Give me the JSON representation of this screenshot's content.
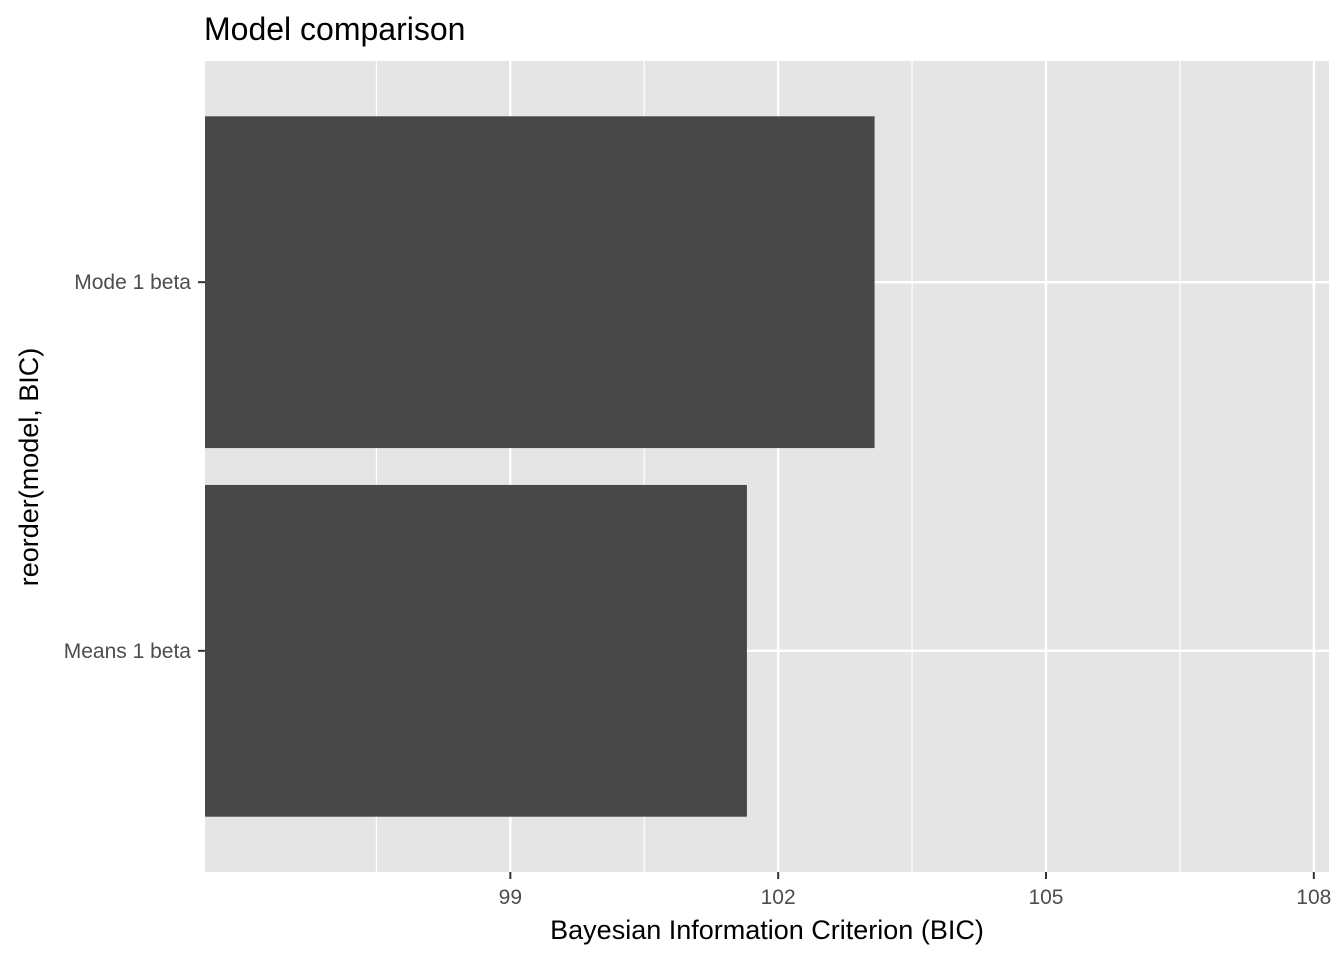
{
  "chart_data": {
    "type": "bar",
    "orientation": "horizontal",
    "title": "Model comparison",
    "xlabel": "Bayesian Information Criterion (BIC)",
    "ylabel": "reorder(model, BIC)",
    "categories": [
      "Means 1 beta",
      "Mode 1 beta"
    ],
    "values": [
      101.65,
      103.08
    ],
    "xlim": [
      95.58,
      108.17
    ],
    "xticks": [
      99,
      102,
      105,
      108
    ],
    "xtick_labels": [
      "99",
      "102",
      "105",
      "108"
    ],
    "grid": true,
    "legend": "none",
    "bar_color": "#484848",
    "panel_color": "#e5e5e5",
    "grid_color": "#ffffff"
  }
}
